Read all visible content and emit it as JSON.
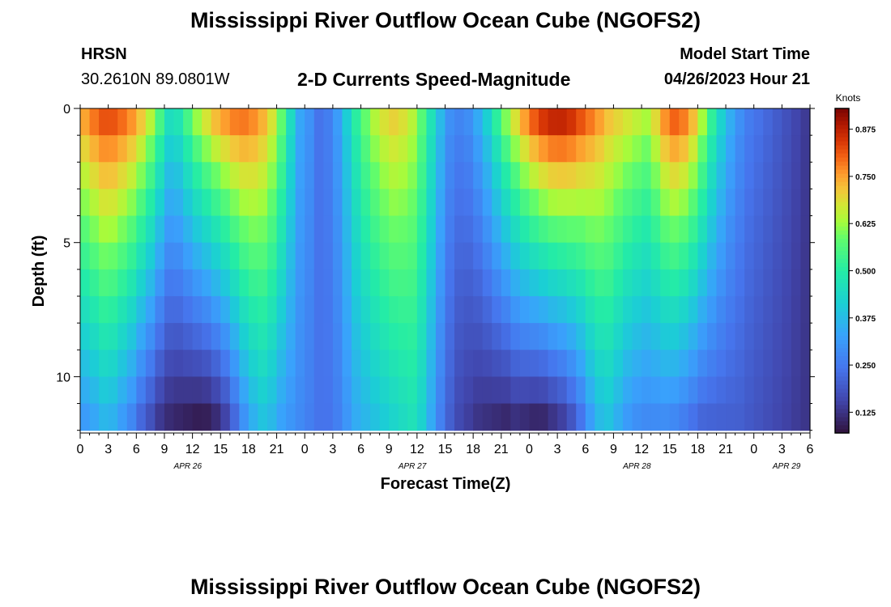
{
  "page": {
    "title_top": "Mississippi River Outflow Ocean Cube (NGOFS2)",
    "title_bottom": "Mississippi River Outflow Ocean Cube (NGOFS2)",
    "station_label": "HRSN",
    "station_coords": "30.2610N  89.0801W",
    "subtitle": "2-D Currents Speed-Magnitude",
    "model_start_label": "Model Start Time",
    "model_start_value": "04/26/2023 Hour 21"
  },
  "chart_data": {
    "type": "heatmap",
    "title": "2-D Currents Speed-Magnitude",
    "xlabel": "Forecast Time(Z)",
    "ylabel": "Depth (ft)",
    "x_tick_labels": [
      "0",
      "3",
      "6",
      "9",
      "12",
      "15",
      "18",
      "21",
      "0",
      "3",
      "6",
      "9",
      "12",
      "15",
      "18",
      "21",
      "0",
      "3",
      "6",
      "9",
      "12",
      "15",
      "18",
      "21",
      "0",
      "3",
      "6"
    ],
    "x_tick_hours": [
      0,
      3,
      6,
      9,
      12,
      15,
      18,
      21,
      24,
      27,
      30,
      33,
      36,
      39,
      42,
      45,
      48,
      51,
      54,
      57,
      60,
      63,
      66,
      69,
      72,
      75,
      78
    ],
    "x_range_hours": [
      0,
      78
    ],
    "day_labels": [
      {
        "label": "APR 26",
        "hour": 11.5
      },
      {
        "label": "APR 27",
        "hour": 35.5
      },
      {
        "label": "APR 28",
        "hour": 59.5
      },
      {
        "label": "APR 29",
        "hour": 75.5
      }
    ],
    "y_tick_labels": [
      "0",
      "5",
      "10"
    ],
    "y_tick_values": [
      0,
      5,
      10
    ],
    "y_range_ft": [
      0,
      12.1
    ],
    "colorbar": {
      "title": "Knots",
      "tick_labels": [
        "0.875",
        "0.750",
        "0.625",
        "0.500",
        "0.375",
        "0.250",
        "0.125"
      ],
      "tick_values": [
        0.875,
        0.75,
        0.625,
        0.5,
        0.375,
        0.25,
        0.125
      ],
      "range": [
        0.07,
        0.93
      ]
    },
    "depth_levels_ft": [
      0.5,
      1.5,
      2.5,
      3.5,
      4.5,
      5.5,
      6.5,
      7.5,
      8.5,
      9.5,
      10.5,
      11.5
    ],
    "time_hours_step": 1,
    "surface_speed_knots": [
      0.78,
      0.82,
      0.85,
      0.85,
      0.83,
      0.8,
      0.75,
      0.68,
      0.58,
      0.48,
      0.5,
      0.58,
      0.66,
      0.72,
      0.77,
      0.8,
      0.82,
      0.82,
      0.8,
      0.76,
      0.7,
      0.6,
      0.46,
      0.34,
      0.3,
      0.24,
      0.26,
      0.32,
      0.42,
      0.52,
      0.6,
      0.66,
      0.7,
      0.72,
      0.7,
      0.66,
      0.58,
      0.48,
      0.38,
      0.3,
      0.28,
      0.3,
      0.36,
      0.44,
      0.54,
      0.64,
      0.72,
      0.8,
      0.86,
      0.9,
      0.92,
      0.92,
      0.9,
      0.86,
      0.82,
      0.78,
      0.74,
      0.72,
      0.7,
      0.68,
      0.66,
      0.72,
      0.8,
      0.84,
      0.82,
      0.76,
      0.66,
      0.54,
      0.44,
      0.36,
      0.3,
      0.26,
      0.24,
      0.22,
      0.2,
      0.18,
      0.16,
      0.14
    ],
    "bottom_speed_knots": [
      0.3,
      0.32,
      0.35,
      0.34,
      0.3,
      0.26,
      0.2,
      0.16,
      0.12,
      0.1,
      0.09,
      0.08,
      0.07,
      0.07,
      0.09,
      0.13,
      0.2,
      0.28,
      0.34,
      0.38,
      0.36,
      0.32,
      0.3,
      0.28,
      0.26,
      0.24,
      0.24,
      0.26,
      0.3,
      0.34,
      0.36,
      0.38,
      0.4,
      0.42,
      0.44,
      0.46,
      0.42,
      0.34,
      0.26,
      0.2,
      0.16,
      0.14,
      0.12,
      0.11,
      0.1,
      0.09,
      0.1,
      0.09,
      0.08,
      0.08,
      0.1,
      0.12,
      0.16,
      0.22,
      0.3,
      0.36,
      0.38,
      0.34,
      0.3,
      0.28,
      0.27,
      0.27,
      0.27,
      0.26,
      0.24,
      0.22,
      0.2,
      0.2,
      0.2,
      0.2,
      0.2,
      0.19,
      0.18,
      0.17,
      0.16,
      0.15,
      0.14,
      0.13
    ]
  }
}
